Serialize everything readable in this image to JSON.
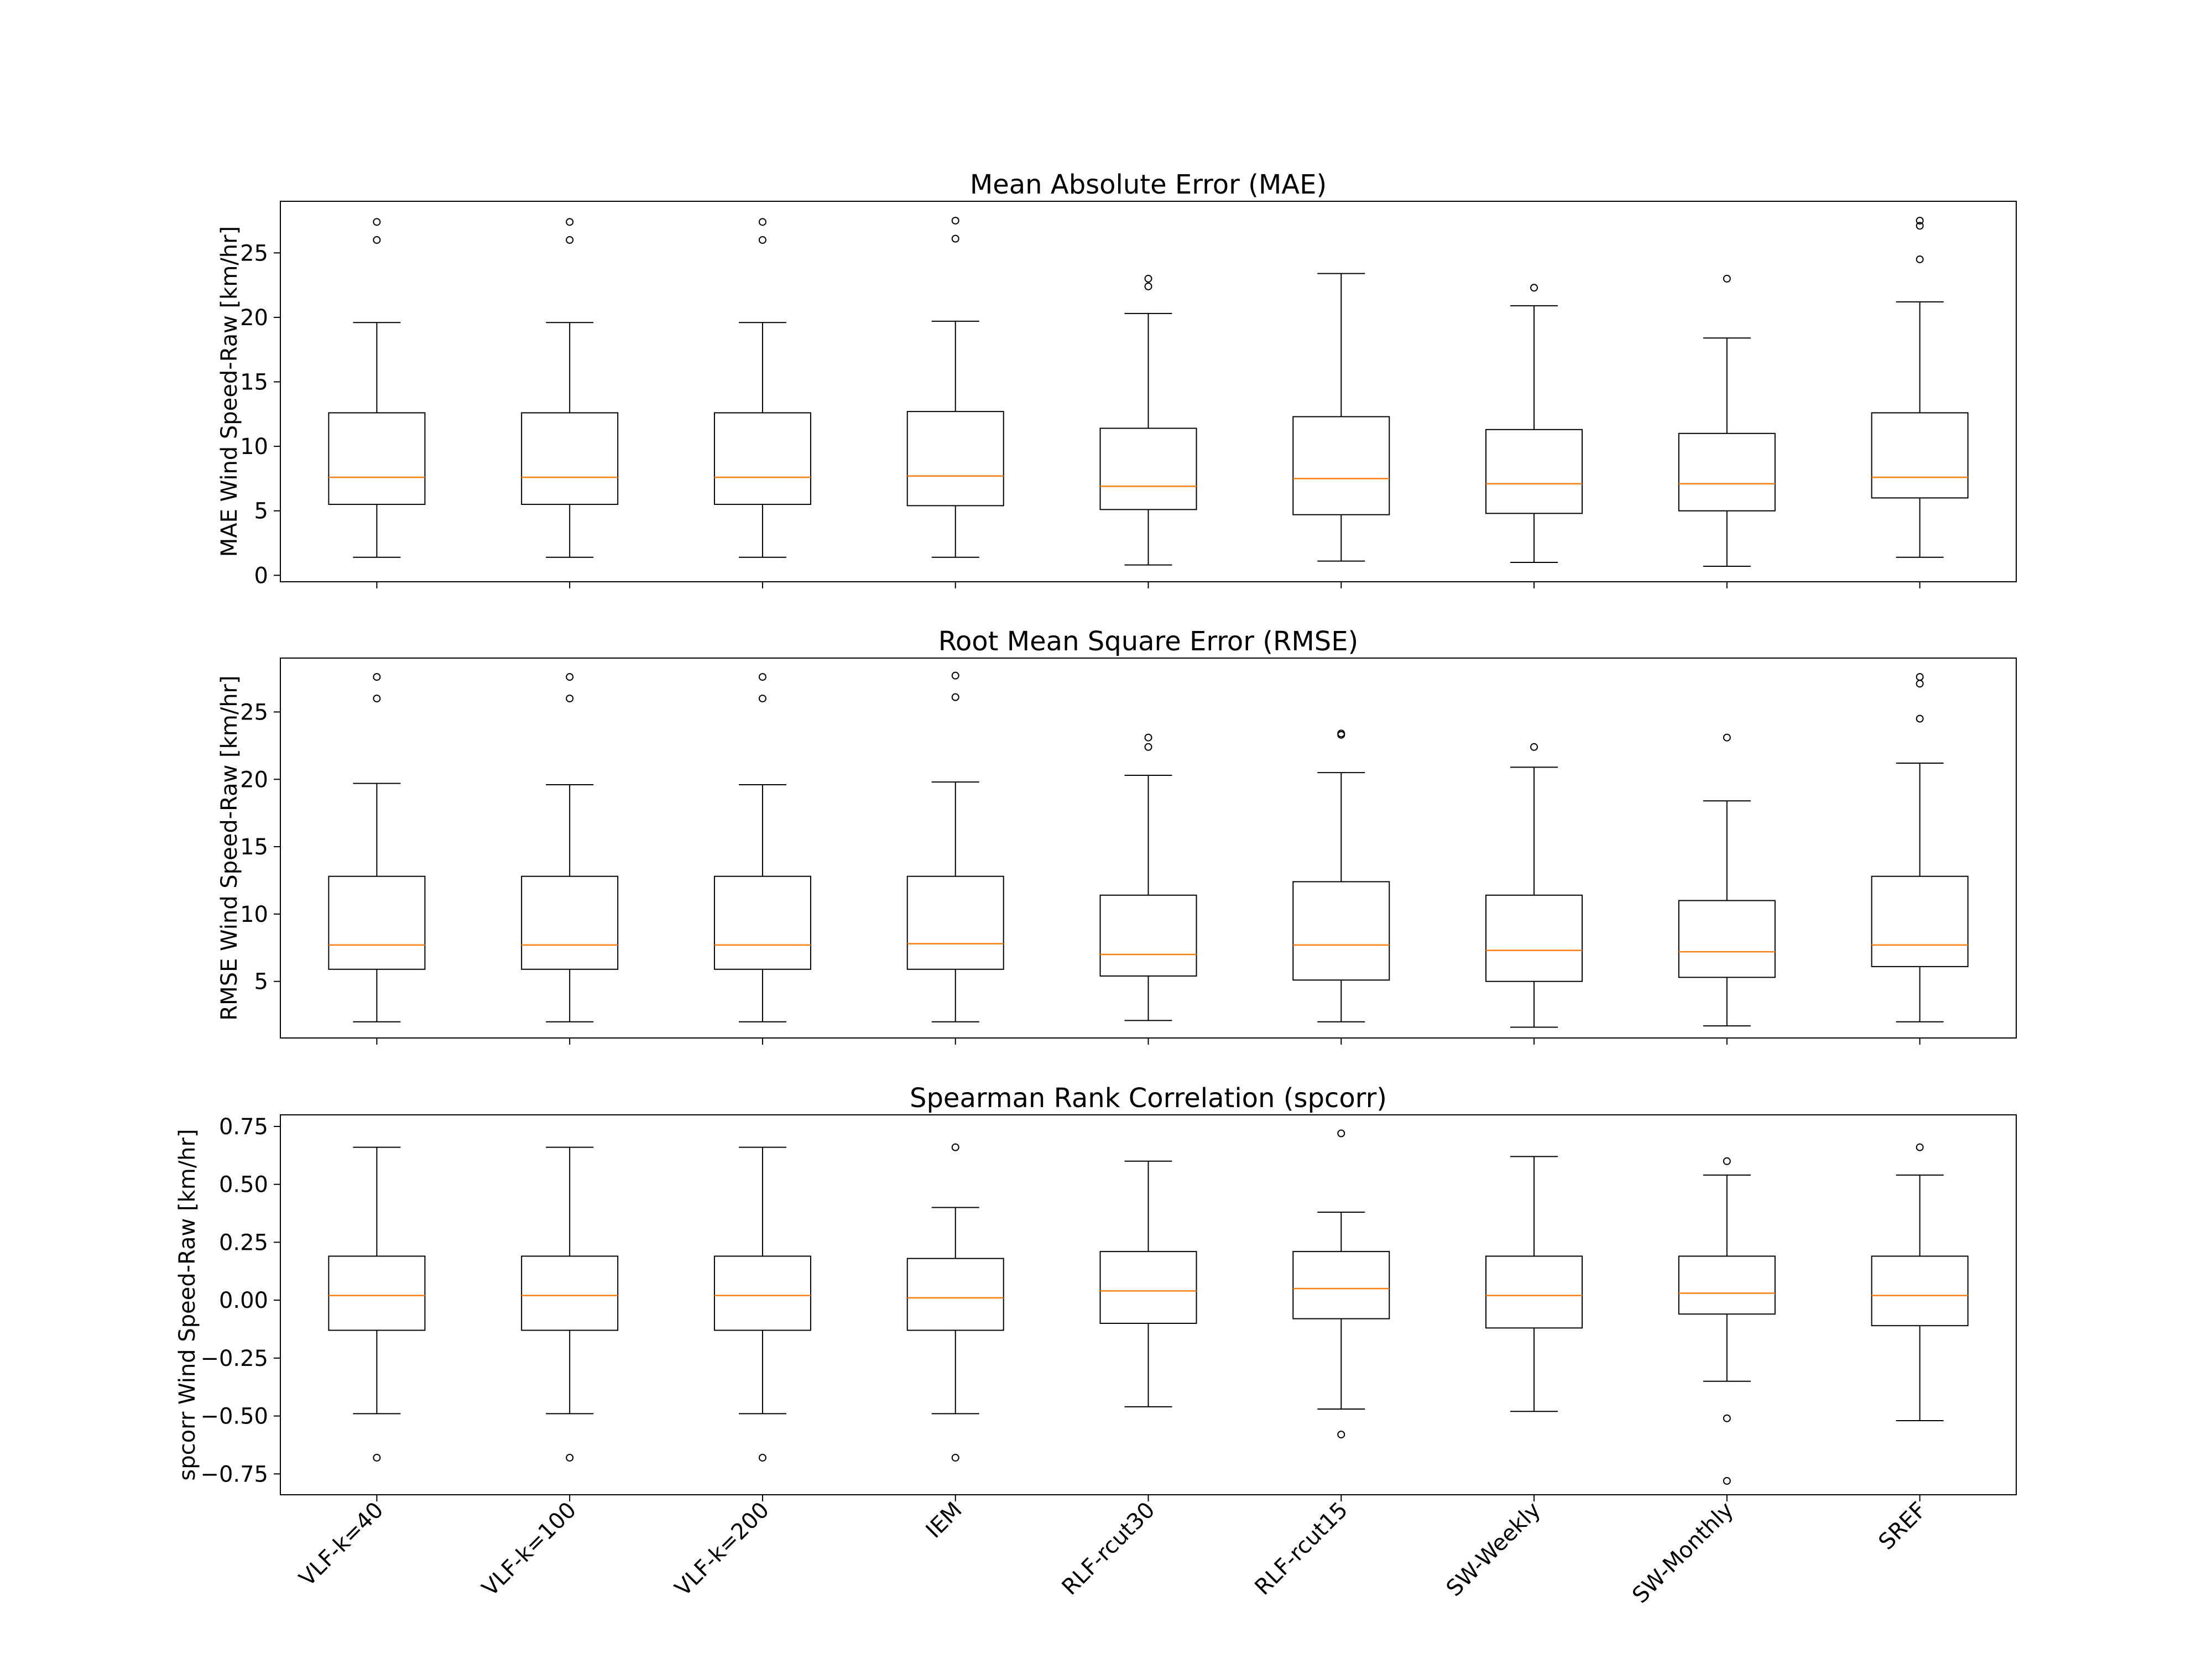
{
  "categories": [
    "VLF-k=40",
    "VLF-k=100",
    "VLF-k=200",
    "IEM",
    "RLF-rcut30",
    "RLF-rcut15",
    "SW-Weekly",
    "SW-Monthly",
    "SREF"
  ],
  "colors": {
    "box": "#000000",
    "median": "#ff7f0e",
    "flier": "#000000",
    "frame": "#000000"
  },
  "chart_data": [
    {
      "type": "box",
      "title": "Mean Absolute Error (MAE)",
      "ylabel": "MAE Wind Speed-Raw [km/hr]",
      "ylim": [
        -0.5,
        29
      ],
      "yticks": [
        0,
        5,
        10,
        15,
        20,
        25
      ],
      "ytick_labels": [
        "0",
        "5",
        "10",
        "15",
        "20",
        "25"
      ],
      "boxes": [
        {
          "category": "VLF-k=40",
          "whislo": 1.4,
          "q1": 5.5,
          "med": 7.6,
          "q3": 12.6,
          "whishi": 19.6,
          "fliers": [
            26.0,
            27.4
          ]
        },
        {
          "category": "VLF-k=100",
          "whislo": 1.4,
          "q1": 5.5,
          "med": 7.6,
          "q3": 12.6,
          "whishi": 19.6,
          "fliers": [
            26.0,
            27.4
          ]
        },
        {
          "category": "VLF-k=200",
          "whislo": 1.4,
          "q1": 5.5,
          "med": 7.6,
          "q3": 12.6,
          "whishi": 19.6,
          "fliers": [
            26.0,
            27.4
          ]
        },
        {
          "category": "IEM",
          "whislo": 1.4,
          "q1": 5.4,
          "med": 7.7,
          "q3": 12.7,
          "whishi": 19.7,
          "fliers": [
            26.1,
            27.5
          ]
        },
        {
          "category": "RLF-rcut30",
          "whislo": 0.8,
          "q1": 5.1,
          "med": 6.9,
          "q3": 11.4,
          "whishi": 20.3,
          "fliers": [
            22.4,
            23.0
          ]
        },
        {
          "category": "RLF-rcut15",
          "whislo": 1.1,
          "q1": 4.7,
          "med": 7.5,
          "q3": 12.3,
          "whishi": 23.4,
          "fliers": []
        },
        {
          "category": "SW-Weekly",
          "whislo": 1.0,
          "q1": 4.8,
          "med": 7.1,
          "q3": 11.3,
          "whishi": 20.9,
          "fliers": [
            22.3
          ]
        },
        {
          "category": "SW-Monthly",
          "whislo": 0.7,
          "q1": 5.0,
          "med": 7.1,
          "q3": 11.0,
          "whishi": 18.4,
          "fliers": [
            23.0
          ]
        },
        {
          "category": "SREF",
          "whislo": 1.4,
          "q1": 6.0,
          "med": 7.6,
          "q3": 12.6,
          "whishi": 21.2,
          "fliers": [
            24.5,
            27.1,
            27.5
          ]
        }
      ]
    },
    {
      "type": "box",
      "title": "Root Mean Square Error (RMSE)",
      "ylabel": "RMSE Wind Speed-Raw [km/hr]",
      "ylim": [
        0.8,
        29
      ],
      "yticks": [
        5,
        10,
        15,
        20,
        25
      ],
      "ytick_labels": [
        "5",
        "10",
        "15",
        "20",
        "25"
      ],
      "boxes": [
        {
          "category": "VLF-k=40",
          "whislo": 2.0,
          "q1": 5.9,
          "med": 7.7,
          "q3": 12.8,
          "whishi": 19.7,
          "fliers": [
            26.0,
            27.6
          ]
        },
        {
          "category": "VLF-k=100",
          "whislo": 2.0,
          "q1": 5.9,
          "med": 7.7,
          "q3": 12.8,
          "whishi": 19.6,
          "fliers": [
            26.0,
            27.6
          ]
        },
        {
          "category": "VLF-k=200",
          "whislo": 2.0,
          "q1": 5.9,
          "med": 7.7,
          "q3": 12.8,
          "whishi": 19.6,
          "fliers": [
            26.0,
            27.6
          ]
        },
        {
          "category": "IEM",
          "whislo": 2.0,
          "q1": 5.9,
          "med": 7.8,
          "q3": 12.8,
          "whishi": 19.8,
          "fliers": [
            26.1,
            27.7
          ]
        },
        {
          "category": "RLF-rcut30",
          "whislo": 2.1,
          "q1": 5.4,
          "med": 7.0,
          "q3": 11.4,
          "whishi": 20.3,
          "fliers": [
            22.4,
            23.1
          ]
        },
        {
          "category": "RLF-rcut15",
          "whislo": 2.0,
          "q1": 5.1,
          "med": 7.7,
          "q3": 12.4,
          "whishi": 20.5,
          "fliers": [
            23.3,
            23.4
          ]
        },
        {
          "category": "SW-Weekly",
          "whislo": 1.6,
          "q1": 5.0,
          "med": 7.3,
          "q3": 11.4,
          "whishi": 20.9,
          "fliers": [
            22.4
          ]
        },
        {
          "category": "SW-Monthly",
          "whislo": 1.7,
          "q1": 5.3,
          "med": 7.2,
          "q3": 11.0,
          "whishi": 18.4,
          "fliers": [
            23.1
          ]
        },
        {
          "category": "SREF",
          "whislo": 2.0,
          "q1": 6.1,
          "med": 7.7,
          "q3": 12.8,
          "whishi": 21.2,
          "fliers": [
            24.5,
            27.1,
            27.6
          ]
        }
      ]
    },
    {
      "type": "box",
      "title": "Spearman Rank Correlation (spcorr)",
      "ylabel": "spcorr Wind Speed-Raw [km/hr]",
      "ylim": [
        -0.84,
        0.8
      ],
      "yticks": [
        -0.75,
        -0.5,
        -0.25,
        0.0,
        0.25,
        0.5,
        0.75
      ],
      "ytick_labels": [
        "−0.75",
        "−0.50",
        "−0.25",
        "0.00",
        "0.25",
        "0.50",
        "0.75"
      ],
      "boxes": [
        {
          "category": "VLF-k=40",
          "whislo": -0.49,
          "q1": -0.13,
          "med": 0.02,
          "q3": 0.19,
          "whishi": 0.66,
          "fliers": [
            -0.68
          ]
        },
        {
          "category": "VLF-k=100",
          "whislo": -0.49,
          "q1": -0.13,
          "med": 0.02,
          "q3": 0.19,
          "whishi": 0.66,
          "fliers": [
            -0.68
          ]
        },
        {
          "category": "VLF-k=200",
          "whislo": -0.49,
          "q1": -0.13,
          "med": 0.02,
          "q3": 0.19,
          "whishi": 0.66,
          "fliers": [
            -0.68
          ]
        },
        {
          "category": "IEM",
          "whislo": -0.49,
          "q1": -0.13,
          "med": 0.01,
          "q3": 0.18,
          "whishi": 0.4,
          "fliers": [
            0.66,
            -0.68
          ]
        },
        {
          "category": "RLF-rcut30",
          "whislo": -0.46,
          "q1": -0.1,
          "med": 0.04,
          "q3": 0.21,
          "whishi": 0.6,
          "fliers": []
        },
        {
          "category": "RLF-rcut15",
          "whislo": -0.47,
          "q1": -0.08,
          "med": 0.05,
          "q3": 0.21,
          "whishi": 0.38,
          "fliers": [
            0.72,
            -0.58
          ]
        },
        {
          "category": "SW-Weekly",
          "whislo": -0.48,
          "q1": -0.12,
          "med": 0.02,
          "q3": 0.19,
          "whishi": 0.62,
          "fliers": []
        },
        {
          "category": "SW-Monthly",
          "whislo": -0.35,
          "q1": -0.06,
          "med": 0.03,
          "q3": 0.19,
          "whishi": 0.54,
          "fliers": [
            0.6,
            -0.51,
            -0.78
          ]
        },
        {
          "category": "SREF",
          "whislo": -0.52,
          "q1": -0.11,
          "med": 0.02,
          "q3": 0.19,
          "whishi": 0.54,
          "fliers": [
            0.66
          ]
        }
      ]
    }
  ]
}
